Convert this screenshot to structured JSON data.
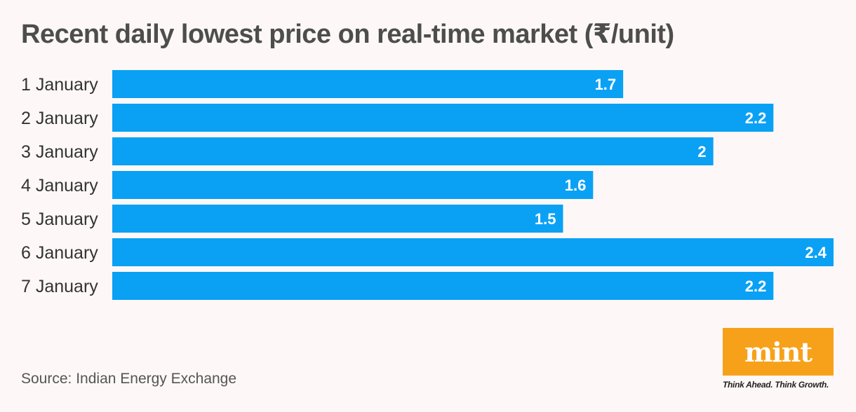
{
  "chart_data": {
    "type": "bar",
    "orientation": "horizontal",
    "title": "Recent daily lowest price on real-time market (₹/unit)",
    "categories": [
      "1 January",
      "2 January",
      "3 January",
      "4 January",
      "5 January",
      "6 January",
      "7 January"
    ],
    "values": [
      1.7,
      2.2,
      2,
      1.6,
      1.5,
      2.4,
      2.2
    ],
    "value_labels": [
      "1.7",
      "2.2",
      "2",
      "1.6",
      "1.5",
      "2.4",
      "2.2"
    ],
    "xlim": [
      0,
      2.4
    ],
    "xlabel": "",
    "ylabel": "",
    "grid": false,
    "legend": "none",
    "bar_color": "#0aa1f5"
  },
  "source": "Source: Indian Energy Exchange",
  "logo": {
    "wordmark": "mint",
    "tagline": "Think Ahead. Think Growth.",
    "color": "#f7a11a"
  },
  "colors": {
    "background": "#fdf8f7",
    "title": "#4d4d4d"
  }
}
